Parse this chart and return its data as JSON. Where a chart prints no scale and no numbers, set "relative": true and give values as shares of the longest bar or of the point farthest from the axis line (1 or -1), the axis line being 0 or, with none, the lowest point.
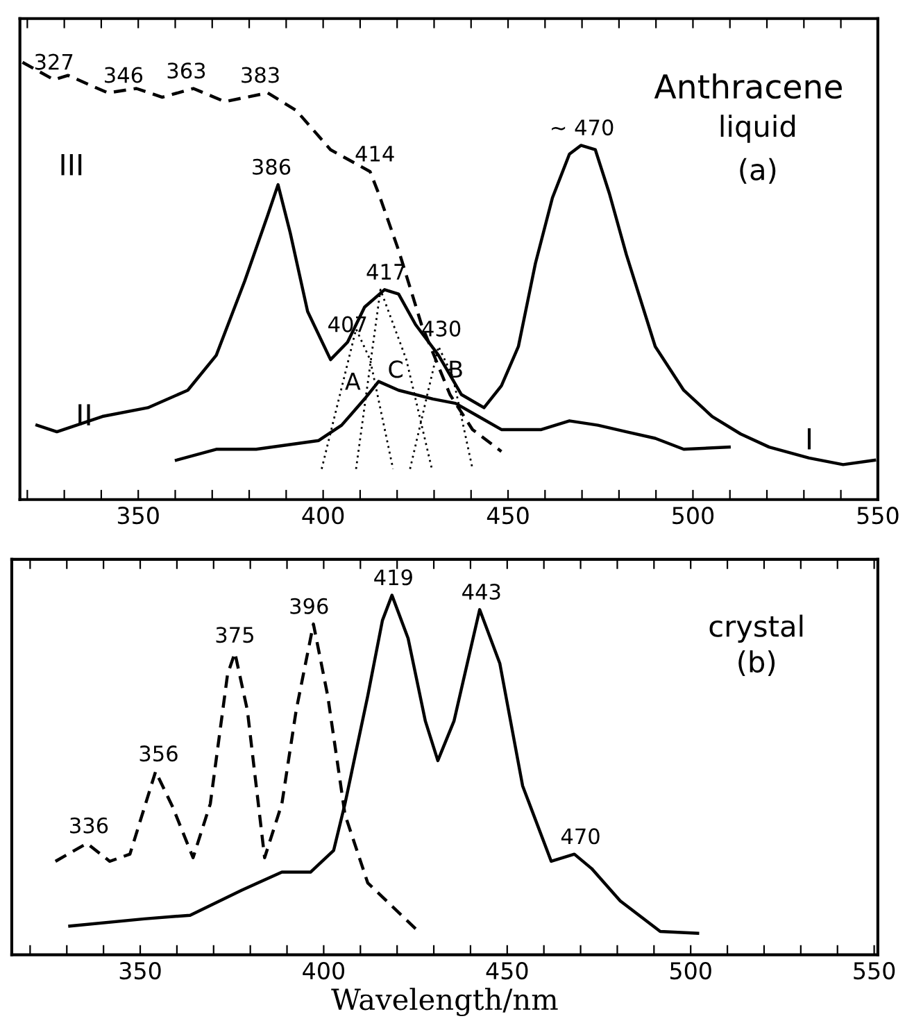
{
  "chart_data": [
    {
      "type": "line",
      "title": "Anthracene",
      "relative": true,
      "xlim": [
        318,
        550
      ],
      "xticks": [
        {
          "value": 320,
          "label": null
        },
        {
          "value": 330,
          "label": null
        },
        {
          "value": 340,
          "label": null
        },
        350,
        {
          "value": 360,
          "label": null
        },
        {
          "value": 370,
          "label": null
        },
        {
          "value": 380,
          "label": null
        },
        {
          "value": 390,
          "label": null
        },
        400,
        {
          "value": 410,
          "label": null
        },
        {
          "value": 420,
          "label": null
        },
        {
          "value": 430,
          "label": null
        },
        {
          "value": 440,
          "label": null
        },
        450,
        {
          "value": 460,
          "label": null
        },
        {
          "value": 470,
          "label": null
        },
        {
          "value": 480,
          "label": null
        },
        {
          "value": 490,
          "label": null
        },
        500,
        {
          "value": 510,
          "label": null
        },
        {
          "value": 520,
          "label": null
        },
        {
          "value": 530,
          "label": null
        },
        {
          "value": 540,
          "label": null
        },
        550
      ],
      "grid": false,
      "legend": false,
      "marker": "none",
      "series": [
        {
          "color": "#000000",
          "line_style": "dashed",
          "x": [
            318.7,
            327.2,
            331.0,
            341.8,
            349.5,
            356.5,
            364.9,
            373.4,
            385.0,
            392.7,
            402.0,
            412.7,
            415.0,
            420.4,
            426.6,
            434.3,
            440.4,
            448.2
          ],
          "values": [
            1.0,
            0.96,
            0.97,
            0.93,
            0.94,
            0.92,
            0.94,
            0.91,
            0.93,
            0.89,
            0.8,
            0.75,
            0.7,
            0.57,
            0.4,
            0.24,
            0.16,
            0.11
          ]
        },
        {
          "color": "#000000",
          "line_style": "solid",
          "x": [
            322.6,
            328.0,
            340.3,
            352.6,
            363.4,
            371.1,
            378.8,
            385.0,
            387.8,
            391.1,
            395.8,
            402.0,
            406.6,
            411.2,
            416.6,
            420.4,
            425.0,
            431.2,
            437.4,
            443.5,
            448.2,
            452.8,
            457.4,
            462.0,
            466.6,
            469.7,
            473.6,
            477.4,
            482.0,
            489.8,
            497.5,
            505.2,
            512.9,
            520.6,
            531.4,
            540.6,
            549.1
          ],
          "values": [
            0.17,
            0.155,
            0.19,
            0.21,
            0.25,
            0.33,
            0.5,
            0.65,
            0.72,
            0.61,
            0.43,
            0.32,
            0.36,
            0.44,
            0.48,
            0.47,
            0.4,
            0.33,
            0.24,
            0.21,
            0.26,
            0.35,
            0.54,
            0.69,
            0.79,
            0.81,
            0.8,
            0.7,
            0.56,
            0.35,
            0.25,
            0.19,
            0.15,
            0.12,
            0.095,
            0.08,
            0.09
          ]
        },
        {
          "color": "#000000",
          "line_style": "solid",
          "x": [
            360.3,
            371.1,
            381.9,
            398.8,
            405.0,
            411.2,
            415.0,
            420.4,
            429.7,
            435.8,
            442.0,
            448.2,
            459.0,
            466.6,
            474.3,
            482.0,
            489.8,
            497.5,
            509.8
          ],
          "values": [
            0.09,
            0.115,
            0.115,
            0.135,
            0.17,
            0.23,
            0.27,
            0.25,
            0.23,
            0.22,
            0.19,
            0.16,
            0.16,
            0.18,
            0.17,
            0.155,
            0.14,
            0.115,
            0.12
          ]
        },
        {
          "color": "#000000",
          "line_style": "dotted",
          "x": [
            399.6,
            408.9,
            412.7,
            418.9
          ],
          "values": [
            0.07,
            0.39,
            0.32,
            0.07
          ]
        },
        {
          "color": "#000000",
          "line_style": "dotted",
          "x": [
            408.9,
            415.5,
            422.5,
            429.4
          ],
          "values": [
            0.07,
            0.48,
            0.32,
            0.07
          ]
        },
        {
          "color": "#000000",
          "line_style": "dotted",
          "x": [
            423.5,
            431.2,
            435.1,
            440.4
          ],
          "values": [
            0.07,
            0.35,
            0.28,
            0.07
          ]
        }
      ],
      "annotations": [
        {
          "text": "327",
          "x": 327.2,
          "y": 0.96
        },
        {
          "text": "346",
          "x": 346,
          "y": 0.93
        },
        {
          "text": "363",
          "x": 363,
          "y": 0.94
        },
        {
          "text": "383",
          "x": 383,
          "y": 0.93
        },
        {
          "text": "414",
          "x": 414,
          "y": 0.75
        },
        {
          "text": "386",
          "x": 386,
          "y": 0.72
        },
        {
          "text": "~ 470",
          "x": 470,
          "y": 0.81
        },
        {
          "text": "407",
          "x": 406.6,
          "y": 0.36
        },
        {
          "text": "417",
          "x": 417,
          "y": 0.48
        },
        {
          "text": "430",
          "x": 432,
          "y": 0.35
        },
        "A",
        "C",
        "B",
        "III",
        "II",
        "I",
        "liquid",
        "(a)"
      ]
    },
    {
      "type": "line",
      "relative": true,
      "xlim": [
        315,
        551
      ],
      "xticks": [
        {
          "value": 320,
          "label": null
        },
        {
          "value": 330,
          "label": null
        },
        {
          "value": 340,
          "label": null
        },
        350,
        {
          "value": 360,
          "label": null
        },
        {
          "value": 370,
          "label": null
        },
        {
          "value": 380,
          "label": null
        },
        {
          "value": 390,
          "label": null
        },
        400,
        {
          "value": 410,
          "label": null
        },
        {
          "value": 420,
          "label": null
        },
        {
          "value": 430,
          "label": null
        },
        {
          "value": 440,
          "label": null
        },
        450,
        {
          "value": 460,
          "label": null
        },
        {
          "value": 470,
          "label": null
        },
        {
          "value": 480,
          "label": null
        },
        {
          "value": 490,
          "label": null
        },
        500,
        {
          "value": 510,
          "label": null
        },
        {
          "value": 520,
          "label": null
        },
        {
          "value": 530,
          "label": null
        },
        {
          "value": 540,
          "label": null
        },
        550
      ],
      "xlabel": "Wavelength/nm",
      "grid": false,
      "legend": false,
      "marker": "none",
      "series": [
        {
          "color": "#000000",
          "line_style": "dashed",
          "x": [
            326.9,
            335.5,
            341.7,
            347.2,
            354.2,
            358.9,
            364.4,
            369.1,
            373.8,
            375.8,
            379.2,
            383.9,
            388.6,
            392.5,
            397.2,
            401.1,
            405.8,
            412.0,
            425.3
          ],
          "values": [
            0.26,
            0.31,
            0.26,
            0.28,
            0.51,
            0.41,
            0.27,
            0.42,
            0.78,
            0.84,
            0.68,
            0.27,
            0.42,
            0.68,
            0.92,
            0.72,
            0.39,
            0.2,
            0.07
          ]
        },
        {
          "color": "#000000",
          "line_style": "solid",
          "x": [
            330.8,
            351.1,
            363.6,
            377.7,
            388.6,
            396.4,
            402.7,
            405.8,
            412.0,
            416.0,
            418.6,
            423.0,
            427.7,
            431.1,
            435.5,
            442.5,
            448.0,
            454.2,
            462.0,
            468.3,
            473.0,
            480.8,
            491.7,
            501.9
          ],
          "values": [
            0.08,
            0.1,
            0.11,
            0.18,
            0.23,
            0.23,
            0.29,
            0.42,
            0.72,
            0.93,
            1.0,
            0.88,
            0.65,
            0.54,
            0.65,
            0.96,
            0.81,
            0.47,
            0.26,
            0.28,
            0.24,
            0.15,
            0.065,
            0.06
          ]
        }
      ],
      "annotations": [
        {
          "text": "336",
          "x": 336,
          "y": 0.31
        },
        {
          "text": "356",
          "x": 355,
          "y": 0.51
        },
        {
          "text": "375",
          "x": 375.8,
          "y": 0.84
        },
        {
          "text": "396",
          "x": 396,
          "y": 0.92
        },
        {
          "text": "419",
          "x": 419,
          "y": 1.0
        },
        {
          "text": "443",
          "x": 443,
          "y": 0.96
        },
        {
          "text": "470",
          "x": 470,
          "y": 0.28
        },
        "crystal",
        "(b)"
      ]
    }
  ]
}
